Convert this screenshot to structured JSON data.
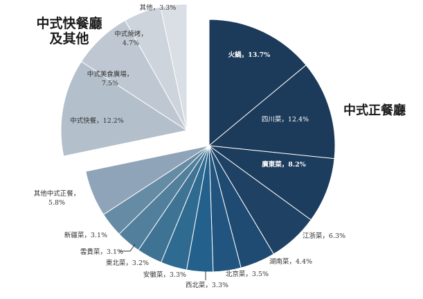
{
  "groups": {
    "left_title_line1": "中式快餐廳",
    "left_title_line2": "及其他",
    "right_title": "中式正餐廳"
  },
  "chart_data": {
    "type": "pie",
    "title": "",
    "exploded_group": "中式快餐廳 及其他",
    "slices": [
      {
        "label": "火鍋，13.7%",
        "value": 13.7,
        "group": "中式正餐廳",
        "color": "#1c3a59"
      },
      {
        "label": "四川菜，12.4%",
        "value": 12.4,
        "group": "中式正餐廳",
        "color": "#1c3a59"
      },
      {
        "label": "廣東菜，8.2%",
        "value": 8.2,
        "group": "中式正餐廳",
        "color": "#1d3d5e"
      },
      {
        "label": "江浙菜，6.3%",
        "value": 6.3,
        "group": "中式正餐廳",
        "color": "#1e4164"
      },
      {
        "label": "湖南菜，4.4%",
        "value": 4.4,
        "group": "中式正餐廳",
        "color": "#1f4a72"
      },
      {
        "label": "北京菜，3.5%",
        "value": 3.5,
        "group": "中式正餐廳",
        "color": "#21557f"
      },
      {
        "label": "西北菜，3.3%",
        "value": 3.3,
        "group": "中式正餐廳",
        "color": "#24608c"
      },
      {
        "label": "安徽菜，3.3%",
        "value": 3.3,
        "group": "中式正餐廳",
        "color": "#2f6a90"
      },
      {
        "label": "東北菜，3.2%",
        "value": 3.2,
        "group": "中式正餐廳",
        "color": "#3e7393"
      },
      {
        "label": "雲貴菜，3.1%",
        "value": 3.1,
        "group": "中式正餐廳",
        "color": "#527f9c"
      },
      {
        "label": "新疆菜，3.1%",
        "value": 3.1,
        "group": "中式正餐廳",
        "color": "#668ba5"
      },
      {
        "label": "其他中式正餐，5.8%",
        "value": 5.8,
        "group": "中式正餐廳",
        "color": "#8fa4b8"
      },
      {
        "label": "中式快餐，12.2%",
        "value": 12.2,
        "group": "中式快餐廳及其他",
        "color": "#b3bfcb"
      },
      {
        "label": "中式美食廣場，7.5%",
        "value": 7.5,
        "group": "中式快餐廳及其他",
        "color": "#bfc8d2"
      },
      {
        "label": "中式燒烤，4.7%",
        "value": 4.7,
        "group": "中式快餐廳及其他",
        "color": "#cdd4dc"
      },
      {
        "label": "其他，3.3%",
        "value": 3.3,
        "group": "中式快餐廳及其他",
        "color": "#dadfe5"
      }
    ]
  }
}
